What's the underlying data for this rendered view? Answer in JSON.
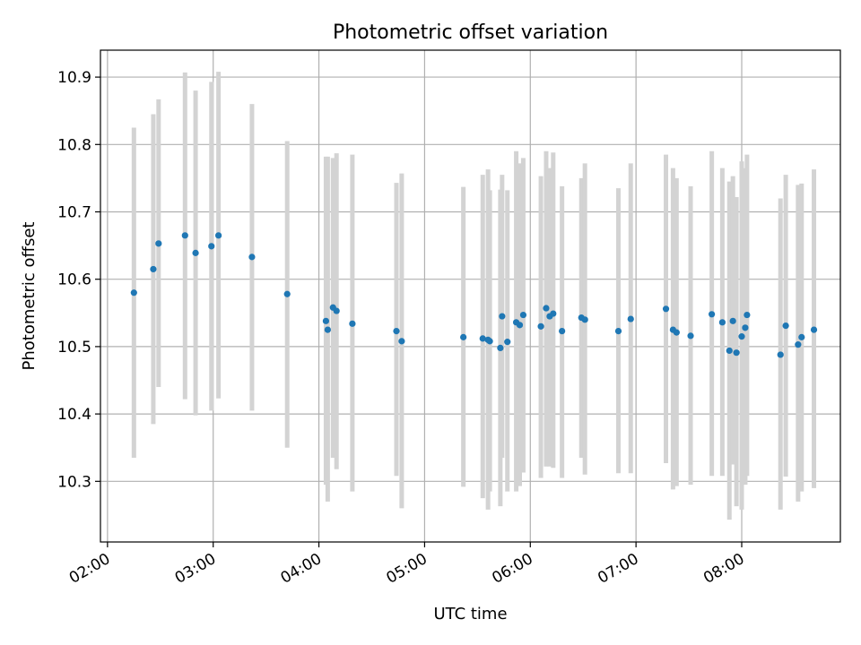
{
  "chart_data": {
    "type": "scatter",
    "title": "Photometric offset variation",
    "xlabel": "UTC time",
    "ylabel": "Photometric offset",
    "xlim": [
      "01:56",
      "08:56"
    ],
    "ylim": [
      10.21,
      10.94
    ],
    "grid": true,
    "x_ticks": [
      "02:00",
      "03:00",
      "04:00",
      "05:00",
      "06:00",
      "07:00",
      "08:00"
    ],
    "y_ticks": [
      "10.3",
      "10.4",
      "10.5",
      "10.6",
      "10.7",
      "10.8",
      "10.9"
    ],
    "colors": {
      "marker": "#1f77b4",
      "errorbar": "#d3d3d3",
      "grid": "#b0b0b0"
    },
    "points": [
      {
        "x": "02:15",
        "y": 10.58,
        "ylow": 10.335,
        "yhigh": 10.825
      },
      {
        "x": "02:26",
        "y": 10.615,
        "ylow": 10.385,
        "yhigh": 10.845
      },
      {
        "x": "02:29",
        "y": 10.653,
        "ylow": 10.44,
        "yhigh": 10.867
      },
      {
        "x": "02:44",
        "y": 10.665,
        "ylow": 10.422,
        "yhigh": 10.907
      },
      {
        "x": "02:50",
        "y": 10.639,
        "ylow": 10.398,
        "yhigh": 10.88
      },
      {
        "x": "02:59",
        "y": 10.649,
        "ylow": 10.405,
        "yhigh": 10.893
      },
      {
        "x": "03:03",
        "y": 10.665,
        "ylow": 10.423,
        "yhigh": 10.908
      },
      {
        "x": "03:22",
        "y": 10.633,
        "ylow": 10.405,
        "yhigh": 10.86
      },
      {
        "x": "03:42",
        "y": 10.578,
        "ylow": 10.35,
        "yhigh": 10.805
      },
      {
        "x": "04:04",
        "y": 10.538,
        "ylow": 10.295,
        "yhigh": 10.782
      },
      {
        "x": "04:05",
        "y": 10.525,
        "ylow": 10.27,
        "yhigh": 10.782
      },
      {
        "x": "04:08",
        "y": 10.558,
        "ylow": 10.335,
        "yhigh": 10.78
      },
      {
        "x": "04:10",
        "y": 10.553,
        "ylow": 10.318,
        "yhigh": 10.787
      },
      {
        "x": "04:19",
        "y": 10.534,
        "ylow": 10.285,
        "yhigh": 10.785
      },
      {
        "x": "04:44",
        "y": 10.523,
        "ylow": 10.308,
        "yhigh": 10.743
      },
      {
        "x": "04:47",
        "y": 10.508,
        "ylow": 10.26,
        "yhigh": 10.757
      },
      {
        "x": "05:22",
        "y": 10.514,
        "ylow": 10.292,
        "yhigh": 10.737
      },
      {
        "x": "05:33",
        "y": 10.512,
        "ylow": 10.275,
        "yhigh": 10.755
      },
      {
        "x": "05:36",
        "y": 10.51,
        "ylow": 10.258,
        "yhigh": 10.763
      },
      {
        "x": "05:37",
        "y": 10.508,
        "ylow": 10.285,
        "yhigh": 10.732
      },
      {
        "x": "05:43",
        "y": 10.498,
        "ylow": 10.263,
        "yhigh": 10.733
      },
      {
        "x": "05:44",
        "y": 10.545,
        "ylow": 10.335,
        "yhigh": 10.755
      },
      {
        "x": "05:47",
        "y": 10.507,
        "ylow": 10.285,
        "yhigh": 10.732
      },
      {
        "x": "05:52",
        "y": 10.536,
        "ylow": 10.285,
        "yhigh": 10.79
      },
      {
        "x": "05:54",
        "y": 10.532,
        "ylow": 10.293,
        "yhigh": 10.772
      },
      {
        "x": "05:56",
        "y": 10.547,
        "ylow": 10.313,
        "yhigh": 10.78
      },
      {
        "x": "06:06",
        "y": 10.53,
        "ylow": 10.305,
        "yhigh": 10.753
      },
      {
        "x": "06:09",
        "y": 10.557,
        "ylow": 10.322,
        "yhigh": 10.79
      },
      {
        "x": "06:11",
        "y": 10.545,
        "ylow": 10.322,
        "yhigh": 10.765
      },
      {
        "x": "06:13",
        "y": 10.549,
        "ylow": 10.32,
        "yhigh": 10.788
      },
      {
        "x": "06:18",
        "y": 10.523,
        "ylow": 10.305,
        "yhigh": 10.738
      },
      {
        "x": "06:29",
        "y": 10.543,
        "ylow": 10.335,
        "yhigh": 10.75
      },
      {
        "x": "06:31",
        "y": 10.54,
        "ylow": 10.31,
        "yhigh": 10.772
      },
      {
        "x": "06:50",
        "y": 10.523,
        "ylow": 10.312,
        "yhigh": 10.735
      },
      {
        "x": "06:57",
        "y": 10.541,
        "ylow": 10.312,
        "yhigh": 10.772
      },
      {
        "x": "07:17",
        "y": 10.556,
        "ylow": 10.327,
        "yhigh": 10.785
      },
      {
        "x": "07:21",
        "y": 10.525,
        "ylow": 10.288,
        "yhigh": 10.765
      },
      {
        "x": "07:23",
        "y": 10.521,
        "ylow": 10.293,
        "yhigh": 10.75
      },
      {
        "x": "07:31",
        "y": 10.516,
        "ylow": 10.295,
        "yhigh": 10.738
      },
      {
        "x": "07:43",
        "y": 10.548,
        "ylow": 10.308,
        "yhigh": 10.79
      },
      {
        "x": "07:49",
        "y": 10.536,
        "ylow": 10.308,
        "yhigh": 10.765
      },
      {
        "x": "07:53",
        "y": 10.494,
        "ylow": 10.243,
        "yhigh": 10.745
      },
      {
        "x": "07:55",
        "y": 10.538,
        "ylow": 10.325,
        "yhigh": 10.753
      },
      {
        "x": "07:57",
        "y": 10.491,
        "ylow": 10.263,
        "yhigh": 10.722
      },
      {
        "x": "08:00",
        "y": 10.515,
        "ylow": 10.258,
        "yhigh": 10.775
      },
      {
        "x": "08:02",
        "y": 10.528,
        "ylow": 10.295,
        "yhigh": 10.765
      },
      {
        "x": "08:03",
        "y": 10.547,
        "ylow": 10.308,
        "yhigh": 10.785
      },
      {
        "x": "08:22",
        "y": 10.488,
        "ylow": 10.258,
        "yhigh": 10.72
      },
      {
        "x": "08:25",
        "y": 10.531,
        "ylow": 10.307,
        "yhigh": 10.755
      },
      {
        "x": "08:32",
        "y": 10.503,
        "ylow": 10.27,
        "yhigh": 10.74
      },
      {
        "x": "08:34",
        "y": 10.514,
        "ylow": 10.285,
        "yhigh": 10.742
      },
      {
        "x": "08:41",
        "y": 10.525,
        "ylow": 10.29,
        "yhigh": 10.763
      }
    ]
  }
}
